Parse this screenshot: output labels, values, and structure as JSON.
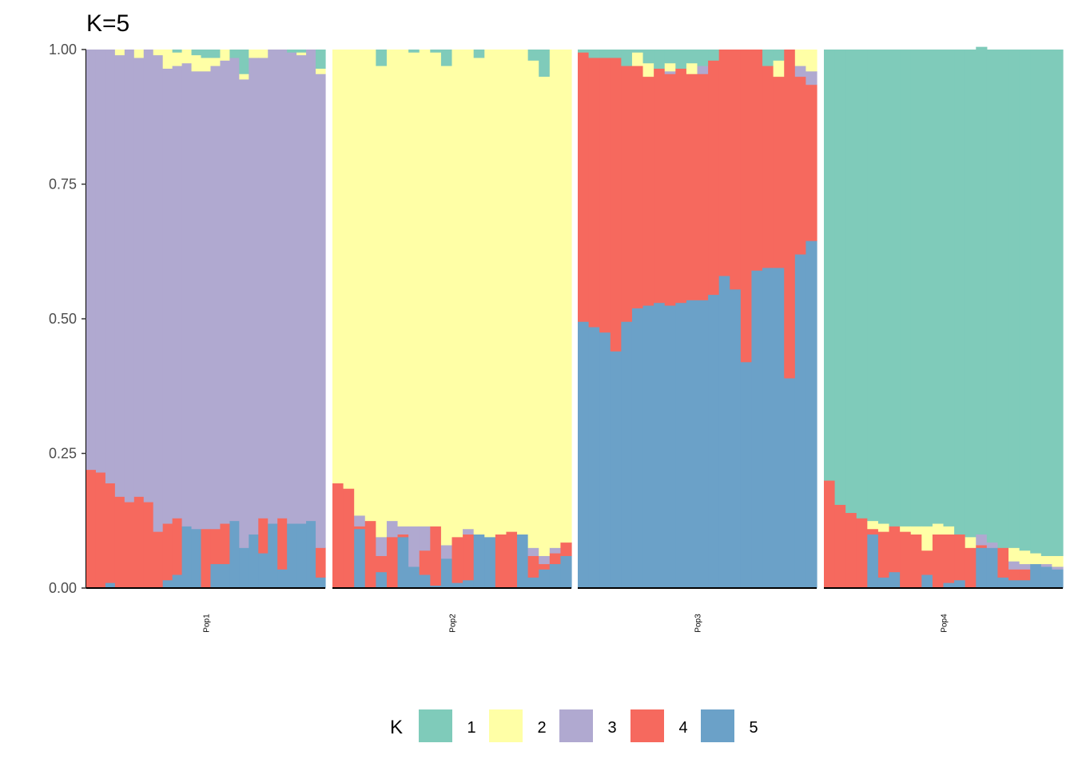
{
  "chart_data": {
    "type": "stacked-bar",
    "title": "K=5",
    "ylim": [
      0,
      1
    ],
    "yticks": [
      "0.00",
      "0.25",
      "0.50",
      "0.75",
      "1.00"
    ],
    "ytick_values": [
      0,
      0.25,
      0.5,
      0.75,
      1.0
    ],
    "grid": false,
    "legend": {
      "title": "K",
      "position": "bottom",
      "entries": [
        "1",
        "2",
        "3",
        "4",
        "5"
      ]
    },
    "colors": {
      "1": "#7FCBBA",
      "2": "#FFFFA6",
      "3": "#B0A9D0",
      "4": "#F6695E",
      "5": "#6BA1C8"
    },
    "component_order_bottom_to_top": [
      "5",
      "4",
      "3",
      "2",
      "1"
    ],
    "panels": [
      {
        "name": "Pop1",
        "individuals": [
          [
            0.0,
            0.0,
            0.78,
            0.22,
            0.0
          ],
          [
            0.0,
            0.0,
            0.785,
            0.215,
            0.0
          ],
          [
            0.0,
            0.0,
            0.805,
            0.185,
            0.01
          ],
          [
            0.0,
            0.01,
            0.82,
            0.17,
            0.0
          ],
          [
            0.0,
            0.0,
            0.84,
            0.16,
            0.0
          ],
          [
            0.0,
            0.015,
            0.815,
            0.17,
            0.0
          ],
          [
            0.0,
            0.0,
            0.84,
            0.16,
            0.0
          ],
          [
            0.0,
            0.01,
            0.885,
            0.105,
            0.0
          ],
          [
            0.0,
            0.035,
            0.845,
            0.105,
            0.015
          ],
          [
            0.005,
            0.025,
            0.84,
            0.105,
            0.025
          ],
          [
            0.0,
            0.025,
            0.86,
            0.0,
            0.115
          ],
          [
            0.01,
            0.03,
            0.85,
            0.0,
            0.11
          ],
          [
            0.015,
            0.025,
            0.85,
            0.11,
            0.0
          ],
          [
            0.015,
            0.015,
            0.86,
            0.065,
            0.045
          ],
          [
            0.0,
            0.02,
            0.86,
            0.075,
            0.045
          ],
          [
            0.015,
            0.0,
            0.86,
            0.0,
            0.125
          ],
          [
            0.045,
            0.01,
            0.87,
            0.0,
            0.075
          ],
          [
            0.0,
            0.015,
            0.885,
            0.0,
            0.1
          ],
          [
            0.0,
            0.015,
            0.855,
            0.065,
            0.065
          ],
          [
            0.0,
            0.0,
            0.88,
            0.0,
            0.12
          ],
          [
            0.0,
            0.0,
            0.87,
            0.095,
            0.035
          ],
          [
            0.005,
            0.0,
            0.875,
            0.0,
            0.12
          ],
          [
            0.005,
            0.005,
            0.87,
            0.0,
            0.12
          ],
          [
            0.0,
            0.0,
            0.875,
            0.0,
            0.125
          ],
          [
            0.035,
            0.01,
            0.88,
            0.055,
            0.02
          ]
        ]
      },
      {
        "name": "Pop2",
        "individuals": [
          [
            0.0,
            0.805,
            0.0,
            0.195,
            0.0
          ],
          [
            0.0,
            0.815,
            0.0,
            0.185,
            0.0
          ],
          [
            0.0,
            0.865,
            0.02,
            0.005,
            0.11
          ],
          [
            0.0,
            0.875,
            0.0,
            0.125,
            0.0
          ],
          [
            0.03,
            0.875,
            0.035,
            0.03,
            0.03
          ],
          [
            0.0,
            0.875,
            0.03,
            0.095,
            0.0
          ],
          [
            0.0,
            0.885,
            0.015,
            0.005,
            0.095
          ],
          [
            0.005,
            0.88,
            0.075,
            0.0,
            0.04
          ],
          [
            0.0,
            0.885,
            0.045,
            0.045,
            0.025
          ],
          [
            0.005,
            0.88,
            0.0,
            0.11,
            0.005
          ],
          [
            0.03,
            0.89,
            0.025,
            0.0,
            0.055
          ],
          [
            0.0,
            0.905,
            0.0,
            0.085,
            0.01
          ],
          [
            0.0,
            0.89,
            0.01,
            0.085,
            0.015
          ],
          [
            0.015,
            0.885,
            0.0,
            0.0,
            0.1
          ],
          [
            0.0,
            0.905,
            0.0,
            0.0,
            0.095
          ],
          [
            0.0,
            0.9,
            0.0,
            0.1,
            0.0
          ],
          [
            0.0,
            0.895,
            0.0,
            0.105,
            0.0
          ],
          [
            0.0,
            0.9,
            0.0,
            0.0,
            0.1
          ],
          [
            0.02,
            0.905,
            0.015,
            0.04,
            0.02
          ],
          [
            0.05,
            0.89,
            0.015,
            0.01,
            0.035
          ],
          [
            0.0,
            0.925,
            0.01,
            0.02,
            0.045
          ],
          [
            0.0,
            0.915,
            0.0,
            0.025,
            0.06
          ]
        ]
      },
      {
        "name": "Pop3",
        "individuals": [
          [
            0.005,
            0.0,
            0.0,
            0.5,
            0.495
          ],
          [
            0.015,
            0.0,
            0.0,
            0.5,
            0.485
          ],
          [
            0.015,
            0.0,
            0.0,
            0.51,
            0.475
          ],
          [
            0.015,
            0.0,
            0.0,
            0.545,
            0.44
          ],
          [
            0.03,
            0.0,
            0.0,
            0.475,
            0.495
          ],
          [
            0.005,
            0.025,
            0.0,
            0.45,
            0.52
          ],
          [
            0.025,
            0.025,
            0.0,
            0.425,
            0.525
          ],
          [
            0.035,
            0.0,
            0.0,
            0.435,
            0.53
          ],
          [
            0.025,
            0.015,
            0.005,
            0.43,
            0.525
          ],
          [
            0.035,
            0.0,
            0.0,
            0.435,
            0.53
          ],
          [
            0.025,
            0.02,
            0.0,
            0.42,
            0.535
          ],
          [
            0.03,
            0.0,
            0.015,
            0.42,
            0.535
          ],
          [
            0.02,
            0.0,
            0.0,
            0.435,
            0.545
          ],
          [
            0.0,
            0.0,
            0.0,
            0.42,
            0.58
          ],
          [
            0.0,
            0.0,
            0.0,
            0.445,
            0.555
          ],
          [
            0.0,
            0.0,
            0.0,
            0.58,
            0.42
          ],
          [
            0.0,
            0.0,
            0.0,
            0.41,
            0.59
          ],
          [
            0.03,
            0.0,
            0.0,
            0.375,
            0.595
          ],
          [
            0.02,
            0.03,
            0.0,
            0.355,
            0.595
          ],
          [
            0.0,
            0.0,
            0.0,
            0.61,
            0.39
          ],
          [
            0.0,
            0.03,
            0.02,
            0.33,
            0.62
          ],
          [
            0.0,
            0.04,
            0.025,
            0.29,
            0.645
          ]
        ]
      },
      {
        "name": "Pop4",
        "individuals": [
          [
            0.8,
            0.0,
            0.0,
            0.2,
            0.0
          ],
          [
            0.845,
            0.0,
            0.0,
            0.155,
            0.0
          ],
          [
            0.86,
            0.0,
            0.0,
            0.14,
            0.0
          ],
          [
            0.87,
            0.0,
            0.0,
            0.13,
            0.0
          ],
          [
            0.875,
            0.015,
            0.0,
            0.01,
            0.1
          ],
          [
            0.88,
            0.015,
            0.0,
            0.085,
            0.02
          ],
          [
            0.885,
            0.0,
            0.0,
            0.085,
            0.03
          ],
          [
            0.885,
            0.01,
            0.0,
            0.105,
            0.0
          ],
          [
            0.885,
            0.015,
            0.0,
            0.1,
            0.0
          ],
          [
            0.885,
            0.045,
            0.0,
            0.045,
            0.025
          ],
          [
            0.88,
            0.02,
            0.0,
            0.1,
            0.0
          ],
          [
            0.885,
            0.015,
            0.0,
            0.09,
            0.01
          ],
          [
            0.9,
            0.0,
            0.0,
            0.085,
            0.015
          ],
          [
            0.905,
            0.02,
            0.0,
            0.075,
            0.0
          ],
          [
            0.905,
            0.0,
            0.02,
            0.005,
            0.075
          ],
          [
            0.915,
            0.0,
            0.01,
            0.0,
            0.075
          ],
          [
            0.925,
            0.0,
            0.0,
            0.055,
            0.02
          ],
          [
            0.925,
            0.025,
            0.015,
            0.02,
            0.015
          ],
          [
            0.93,
            0.025,
            0.01,
            0.02,
            0.015
          ],
          [
            0.935,
            0.02,
            0.0,
            0.0,
            0.045
          ],
          [
            0.94,
            0.015,
            0.005,
            0.0,
            0.04
          ],
          [
            0.94,
            0.02,
            0.005,
            0.0,
            0.035
          ]
        ]
      }
    ]
  }
}
